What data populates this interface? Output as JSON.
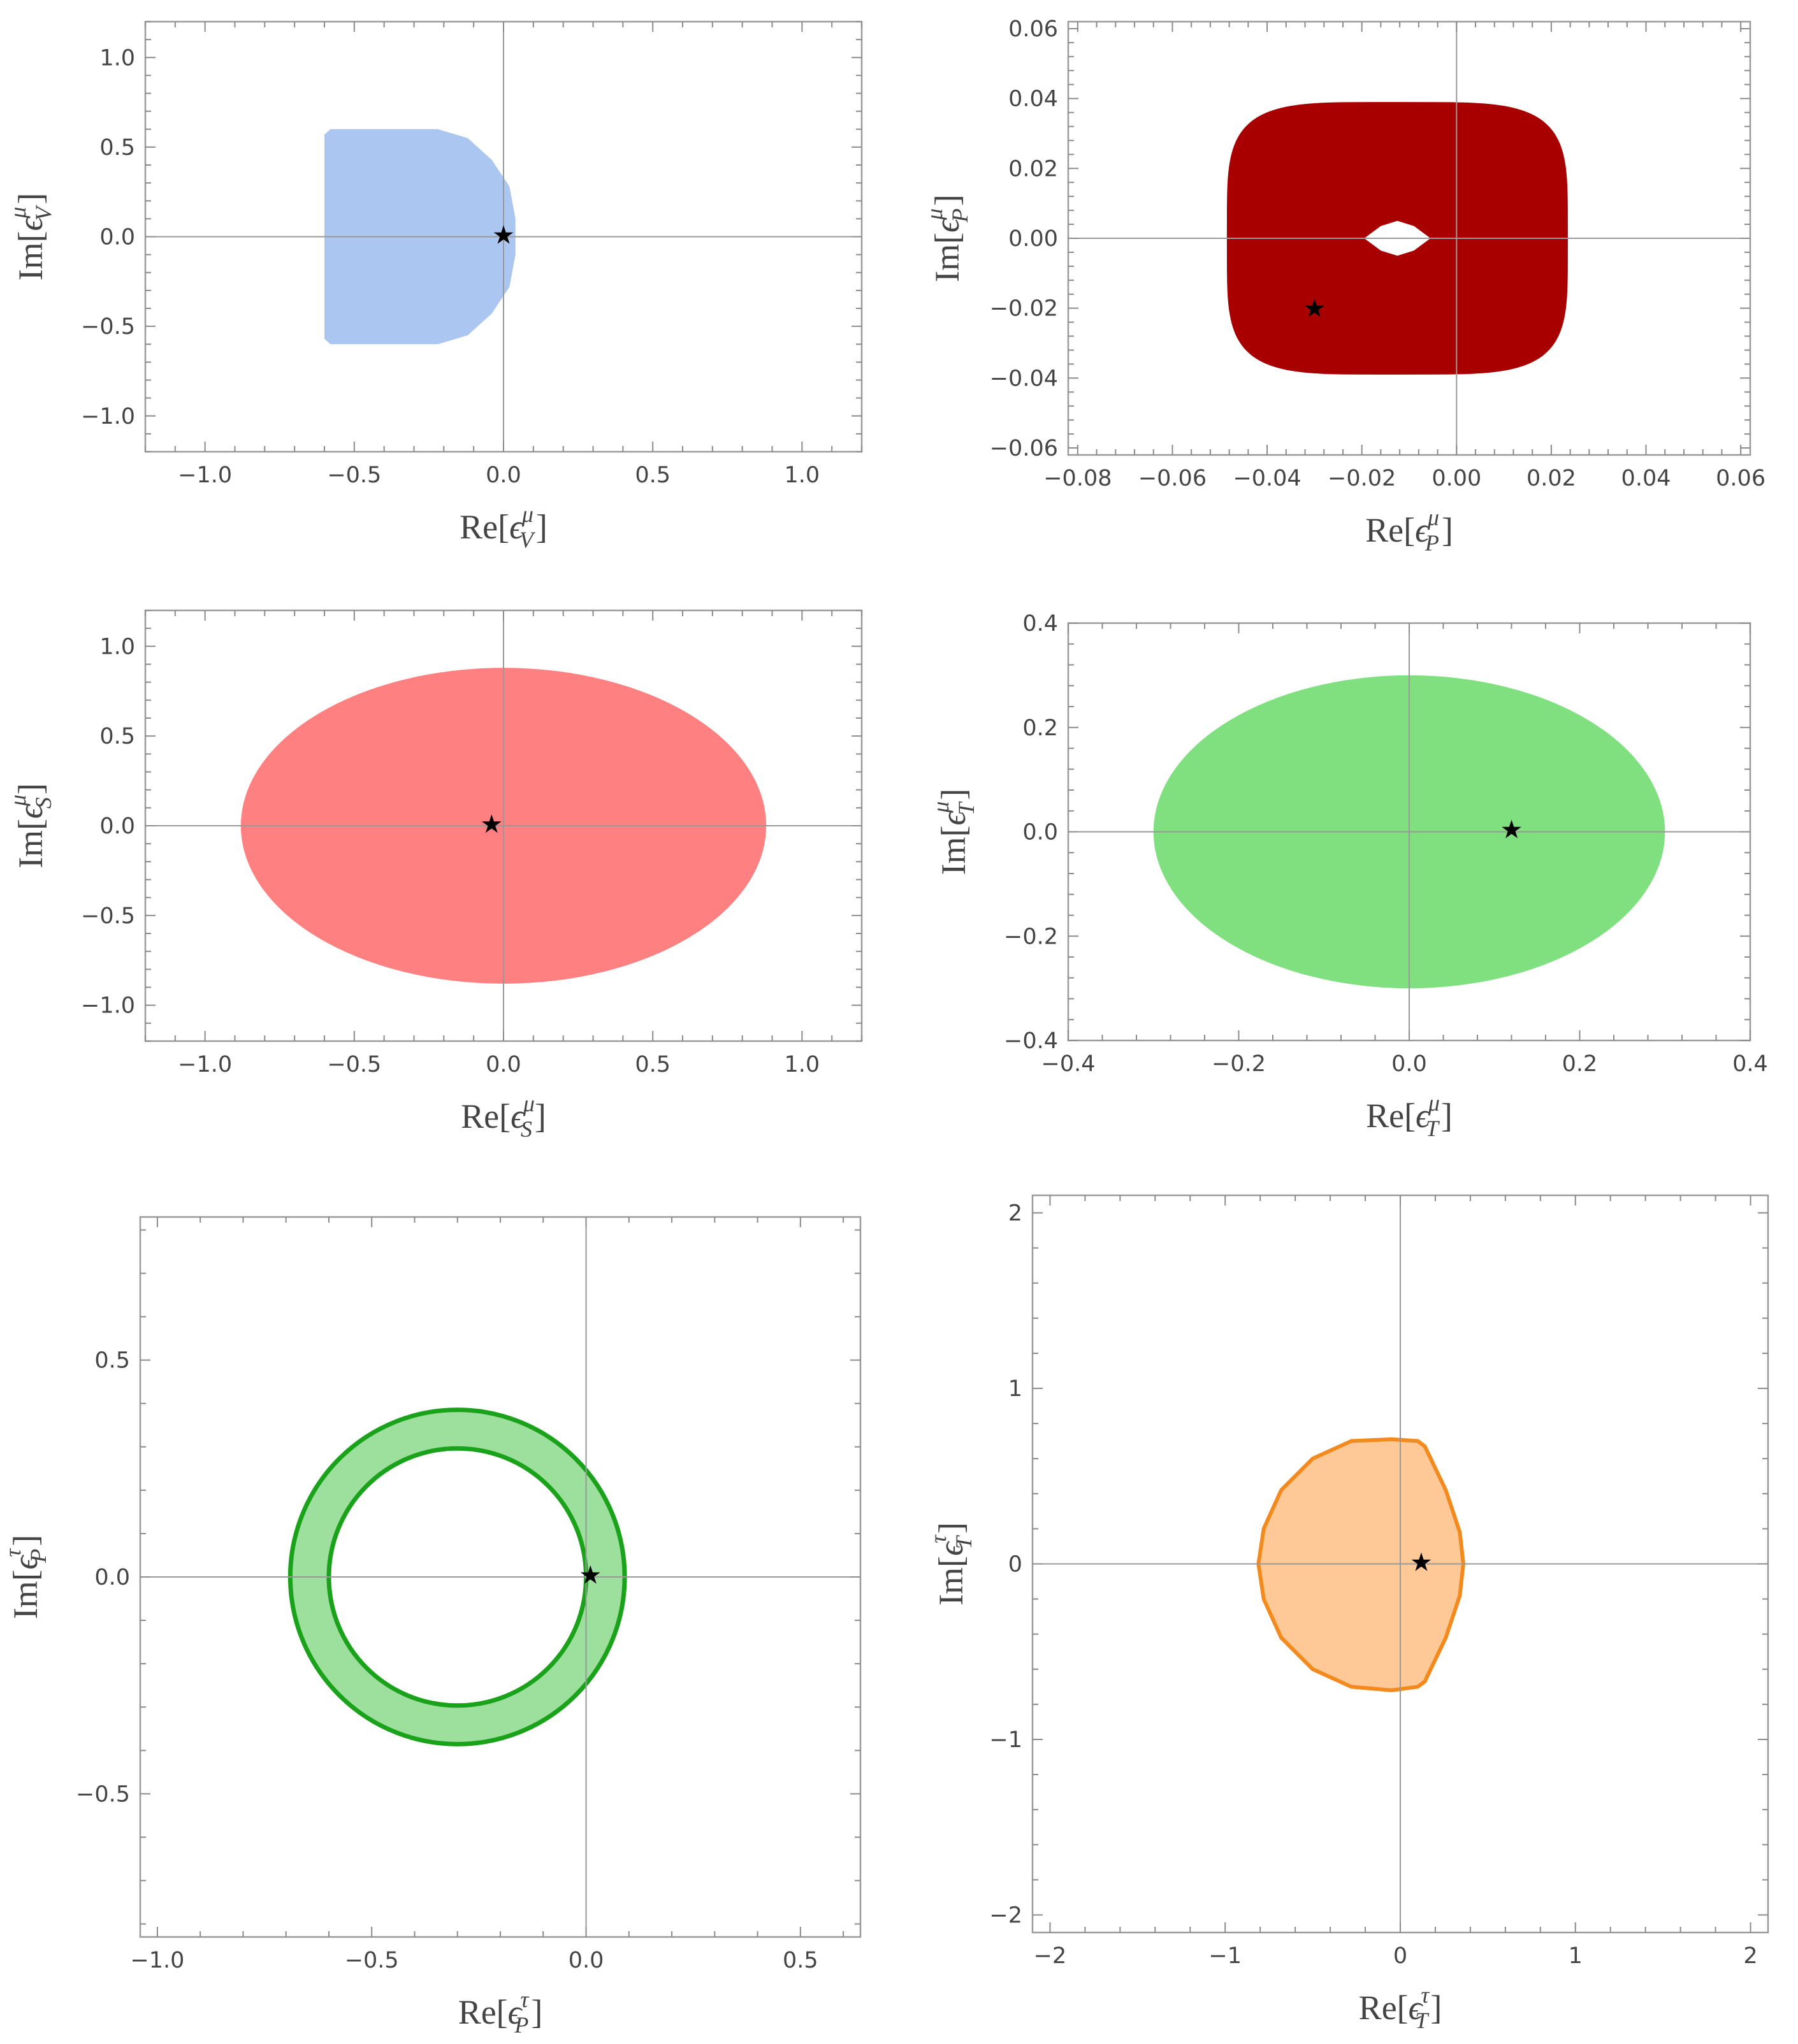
{
  "chart_data": [
    {
      "type": "region",
      "name": "vector-muon",
      "xlabel": {
        "prefix": "Re[",
        "eps": "ϵ",
        "sub": "V",
        "sup": "μ",
        "suffix": "]"
      },
      "ylabel": {
        "prefix": "Im[",
        "eps": "ϵ",
        "sub": "V",
        "sup": "μ",
        "suffix": "]"
      },
      "xlim": [
        -1.2,
        1.2
      ],
      "ylim": [
        -1.2,
        1.2
      ],
      "xticks": [
        -1.0,
        -0.5,
        0.0,
        0.5,
        1.0
      ],
      "yticks": [
        -1.0,
        -0.5,
        0.0,
        0.5,
        1.0
      ],
      "xtick_labels": [
        "−1.0",
        "−0.5",
        "0.0",
        "0.5",
        "1.0"
      ],
      "ytick_labels": [
        "−1.0",
        "−0.5",
        "0.0",
        "0.5",
        "1.0"
      ],
      "region": {
        "shape": "polygon",
        "points": [
          [
            -0.6,
            -0.57
          ],
          [
            -0.58,
            -0.6
          ],
          [
            -0.22,
            -0.6
          ],
          [
            -0.12,
            -0.55
          ],
          [
            -0.04,
            -0.43
          ],
          [
            0.02,
            -0.28
          ],
          [
            0.04,
            -0.1
          ],
          [
            0.04,
            0.1
          ],
          [
            0.02,
            0.28
          ],
          [
            -0.04,
            0.43
          ],
          [
            -0.12,
            0.55
          ],
          [
            -0.22,
            0.6
          ],
          [
            -0.58,
            0.6
          ],
          [
            -0.6,
            0.57
          ]
        ],
        "fill": "#abc6f0",
        "stroke": "none",
        "opacity": 1
      },
      "best_fit": {
        "x": 0.0,
        "y": 0.01,
        "marker": "★"
      }
    },
    {
      "type": "region",
      "name": "pseudoscalar-muon",
      "xlabel": {
        "prefix": "Re[",
        "eps": "ϵ",
        "sub": "P",
        "sup": "μ",
        "suffix": "]"
      },
      "ylabel": {
        "prefix": "Im[",
        "eps": "ϵ",
        "sub": "P",
        "sup": "μ",
        "suffix": "]"
      },
      "xlim": [
        -0.082,
        0.062
      ],
      "ylim": [
        -0.062,
        0.062
      ],
      "xticks": [
        -0.08,
        -0.06,
        -0.04,
        -0.02,
        0.0,
        0.02,
        0.04,
        0.06
      ],
      "yticks": [
        -0.06,
        -0.04,
        -0.02,
        0.0,
        0.02,
        0.04,
        0.06
      ],
      "xtick_labels": [
        "−0.08",
        "−0.06",
        "−0.04",
        "−0.02",
        "0.00",
        "0.02",
        "0.04",
        "0.06"
      ],
      "ytick_labels": [
        "−0.06",
        "−0.04",
        "−0.02",
        "0.00",
        "0.02",
        "0.04",
        "0.06"
      ],
      "region": {
        "shape": "annulus",
        "center": [
          -0.0125,
          0.0
        ],
        "outer": [
          0.036,
          0.039
        ],
        "outer_squareness": 4.5,
        "hole": [
          [
            -0.0195,
            0.0
          ],
          [
            -0.016,
            0.0035
          ],
          [
            -0.0125,
            0.005
          ],
          [
            -0.009,
            0.0035
          ],
          [
            -0.0055,
            0.0
          ],
          [
            -0.009,
            -0.0035
          ],
          [
            -0.0125,
            -0.005
          ],
          [
            -0.016,
            -0.0035
          ]
        ],
        "fill": "#a80000",
        "stroke": "none",
        "opacity": 1
      },
      "best_fit": {
        "x": -0.03,
        "y": -0.02,
        "marker": "★"
      }
    },
    {
      "type": "region",
      "name": "scalar-muon",
      "xlabel": {
        "prefix": "Re[",
        "eps": "ϵ",
        "sub": "S",
        "sup": "μ",
        "suffix": "]"
      },
      "ylabel": {
        "prefix": "Im[",
        "eps": "ϵ",
        "sub": "S",
        "sup": "μ",
        "suffix": "]"
      },
      "xlim": [
        -1.2,
        1.2
      ],
      "ylim": [
        -1.2,
        1.2
      ],
      "xticks": [
        -1.0,
        -0.5,
        0.0,
        0.5,
        1.0
      ],
      "yticks": [
        -1.0,
        -0.5,
        0.0,
        0.5,
        1.0
      ],
      "xtick_labels": [
        "−1.0",
        "−0.5",
        "0.0",
        "0.5",
        "1.0"
      ],
      "ytick_labels": [
        "−1.0",
        "−0.5",
        "0.0",
        "0.5",
        "1.0"
      ],
      "region": {
        "shape": "ellipse",
        "center": [
          0.0,
          0.0
        ],
        "radii": [
          0.88,
          0.88
        ],
        "fill": "#ff8080",
        "stroke": "none",
        "opacity": 1
      },
      "best_fit": {
        "x": -0.04,
        "y": 0.01,
        "marker": "★"
      }
    },
    {
      "type": "region",
      "name": "tensor-muon",
      "xlabel": {
        "prefix": "Re[",
        "eps": "ϵ",
        "sub": "T",
        "sup": "μ",
        "suffix": "]"
      },
      "ylabel": {
        "prefix": "Im[",
        "eps": "ϵ",
        "sub": "T",
        "sup": "μ",
        "suffix": "]"
      },
      "xlim": [
        -0.4,
        0.4
      ],
      "ylim": [
        -0.4,
        0.4
      ],
      "xticks": [
        -0.4,
        -0.2,
        0.0,
        0.2,
        0.4
      ],
      "yticks": [
        -0.4,
        -0.2,
        0.0,
        0.2,
        0.4
      ],
      "xtick_labels": [
        "−0.4",
        "−0.2",
        "0.0",
        "0.2",
        "0.4"
      ],
      "ytick_labels": [
        "−0.4",
        "−0.2",
        "0.0",
        "0.2",
        "0.4"
      ],
      "region": {
        "shape": "ellipse",
        "center": [
          0.0,
          0.0
        ],
        "radii": [
          0.3,
          0.3
        ],
        "fill": "#80e080",
        "stroke": "none",
        "opacity": 1
      },
      "best_fit": {
        "x": 0.12,
        "y": 0.005,
        "marker": "★"
      }
    },
    {
      "type": "region",
      "name": "pseudoscalar-tau",
      "xlabel": {
        "prefix": "Re[",
        "eps": "ϵ",
        "sub": "P",
        "sup": "τ",
        "suffix": "]"
      },
      "ylabel": {
        "prefix": "Im[",
        "eps": "ϵ",
        "sub": "P",
        "sup": "τ",
        "suffix": "]"
      },
      "xlim": [
        -1.04,
        0.64
      ],
      "ylim": [
        -0.83,
        0.83
      ],
      "xticks": [
        -1.0,
        -0.5,
        0.0,
        0.5
      ],
      "yticks": [
        -0.5,
        0.0,
        0.5
      ],
      "xtick_labels": [
        "−1.0",
        "−0.5",
        "0.0",
        "0.5"
      ],
      "ytick_labels": [
        "−0.5",
        "0.0",
        "0.5"
      ],
      "region": {
        "shape": "ring",
        "center": [
          -0.3,
          0.0
        ],
        "outer_r": 0.39,
        "inner_r": 0.3,
        "fill": "#9de09d",
        "stroke": "#1aa31a",
        "opacity": 1
      },
      "best_fit": {
        "x": 0.01,
        "y": 0.005,
        "marker": "★"
      }
    },
    {
      "type": "region",
      "name": "tensor-tau",
      "xlabel": {
        "prefix": "Re[",
        "eps": "ϵ",
        "sub": "T",
        "sup": "τ",
        "suffix": "]"
      },
      "ylabel": {
        "prefix": "Im[",
        "eps": "ϵ",
        "sub": "T",
        "sup": "τ",
        "suffix": "]"
      },
      "xlim": [
        -2.1,
        2.1
      ],
      "ylim": [
        -2.1,
        2.1
      ],
      "xticks": [
        -2,
        -1,
        0,
        1,
        2
      ],
      "yticks": [
        -2,
        -1,
        0,
        1,
        2
      ],
      "xtick_labels": [
        "−2",
        "−1",
        "0",
        "1",
        "2"
      ],
      "ytick_labels": [
        "−2",
        "−1",
        "0",
        "1",
        "2"
      ],
      "region": {
        "shape": "polygon",
        "points": [
          [
            -0.05,
            0.71
          ],
          [
            0.1,
            0.7
          ],
          [
            0.14,
            0.67
          ],
          [
            0.26,
            0.42
          ],
          [
            0.34,
            0.18
          ],
          [
            0.36,
            0.0
          ],
          [
            0.34,
            -0.18
          ],
          [
            0.26,
            -0.42
          ],
          [
            0.14,
            -0.67
          ],
          [
            0.1,
            -0.7
          ],
          [
            -0.05,
            -0.72
          ],
          [
            -0.28,
            -0.7
          ],
          [
            -0.5,
            -0.6
          ],
          [
            -0.68,
            -0.42
          ],
          [
            -0.78,
            -0.2
          ],
          [
            -0.81,
            0.0
          ],
          [
            -0.78,
            0.2
          ],
          [
            -0.68,
            0.42
          ],
          [
            -0.5,
            0.6
          ],
          [
            -0.28,
            0.7
          ]
        ],
        "fill": "#ffc997",
        "stroke": "#f28a1e",
        "opacity": 1
      },
      "best_fit": {
        "x": 0.12,
        "y": 0.01,
        "marker": "★"
      }
    }
  ]
}
